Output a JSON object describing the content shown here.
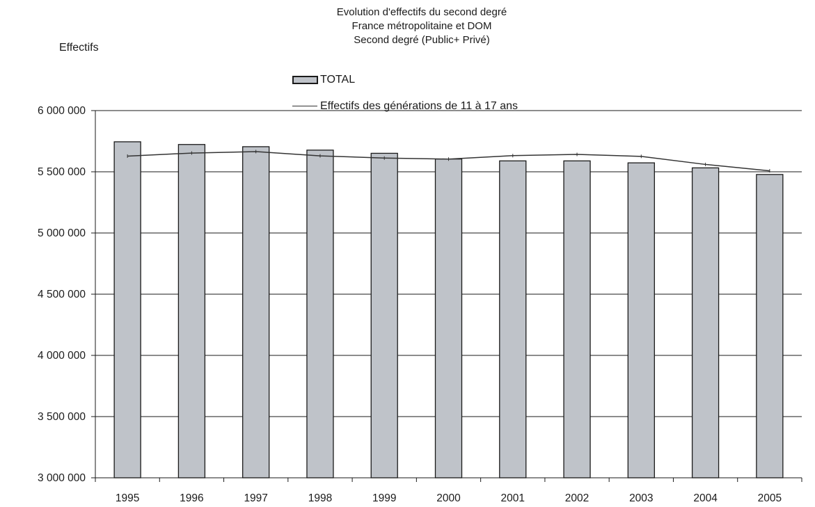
{
  "chart_data": {
    "type": "bar",
    "title_lines": [
      "Evolution d'effectifs du second degré",
      "France métropolitaine et DOM",
      "Second degré (Public+ Privé)"
    ],
    "ylabel": "Effectifs",
    "xlabel": "",
    "categories": [
      "1995",
      "1996",
      "1997",
      "1998",
      "1999",
      "2000",
      "2001",
      "2002",
      "2003",
      "2004",
      "2005"
    ],
    "series": [
      {
        "name": "TOTAL",
        "type": "bar",
        "color": "#bfc3c9",
        "values": [
          5745000,
          5723000,
          5705000,
          5677000,
          5651000,
          5604000,
          5589000,
          5589000,
          5573000,
          5532000,
          5478000
        ]
      },
      {
        "name": "Effectifs des générations de 11 à 17 ans",
        "type": "line",
        "color": "#333333",
        "values": [
          5628000,
          5653000,
          5665000,
          5630000,
          5612000,
          5604000,
          5632000,
          5642000,
          5626000,
          5560000,
          5508000
        ]
      }
    ],
    "ylim": [
      3000000,
      6000000
    ],
    "yticks": [
      3000000,
      3500000,
      4000000,
      4500000,
      5000000,
      5500000,
      6000000
    ],
    "ytick_labels": [
      "3 000 000",
      "3 500 000",
      "4 000 000",
      "4 500 000",
      "5 000 000",
      "5 500 000",
      "6 000 000"
    ],
    "grid": true,
    "legend_position": "top-center"
  }
}
